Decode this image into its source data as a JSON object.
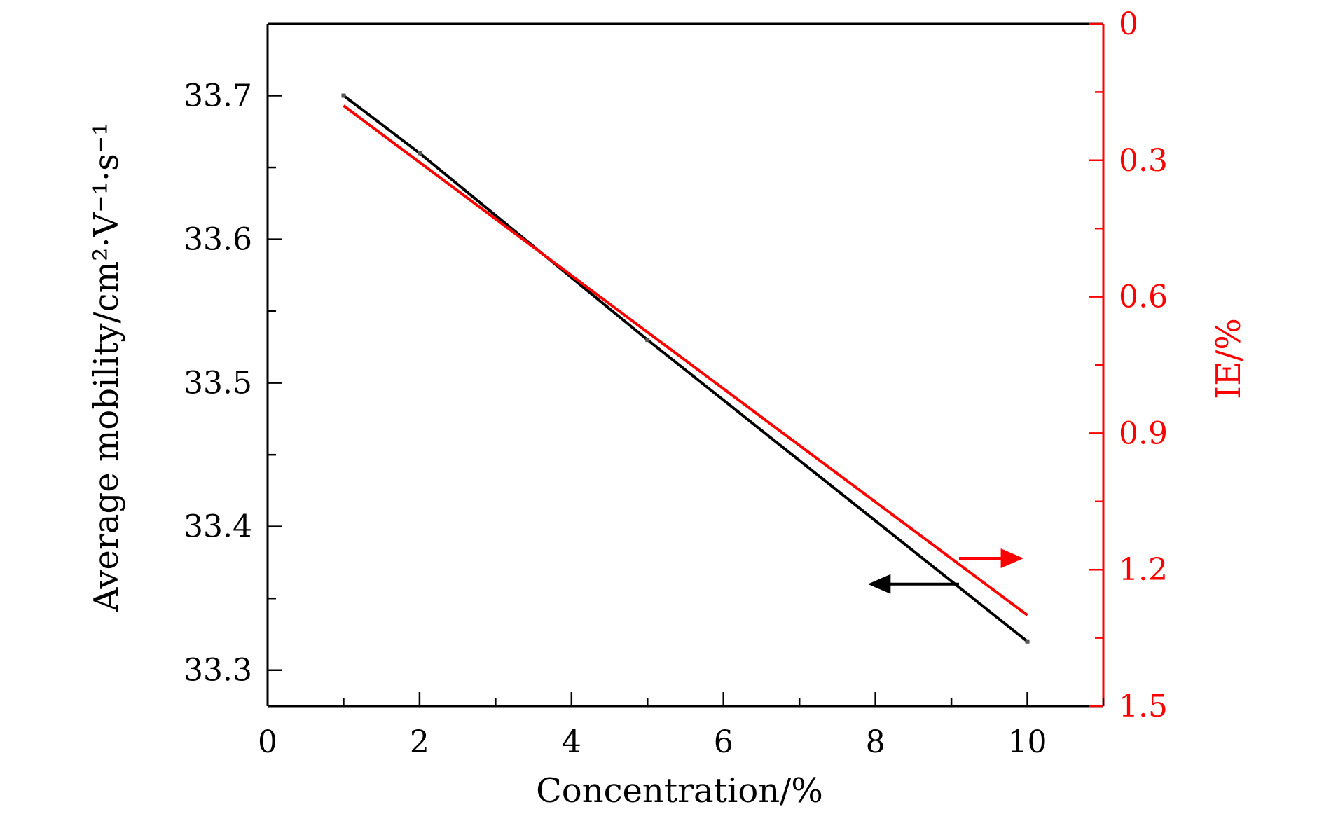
{
  "chart_data": {
    "type": "line",
    "xlabel": "Concentration/%",
    "ylabel": "Average mobility/cm²·V⁻¹·s⁻¹",
    "ylabel_right": "IE/%",
    "xlim": [
      0,
      11
    ],
    "ylim": [
      33.275,
      33.75
    ],
    "ylim_right": [
      1.5,
      0
    ],
    "x_ticks": [
      "0",
      "2",
      "4",
      "6",
      "8",
      "10"
    ],
    "y_ticks": [
      "33.3",
      "33.4",
      "33.5",
      "33.6",
      "33.7"
    ],
    "y_right_ticks": [
      "0",
      "0.3",
      "0.6",
      "0.9",
      "1.2",
      "1.5"
    ],
    "grid": false,
    "series": [
      {
        "axis": "left",
        "color": "#000000",
        "x": [
          1,
          2,
          5,
          10
        ],
        "y": [
          33.7,
          33.66,
          33.53,
          33.32
        ]
      },
      {
        "axis": "right",
        "color": "#ff0000",
        "x": [
          1,
          10
        ],
        "y": [
          0.18,
          1.3
        ]
      }
    ],
    "annotations": [
      {
        "type": "arrow",
        "direction": "left",
        "color": "#000000",
        "points_to": "left-axis"
      },
      {
        "type": "arrow",
        "direction": "right",
        "color": "#ff0000",
        "points_to": "right-axis"
      }
    ]
  }
}
